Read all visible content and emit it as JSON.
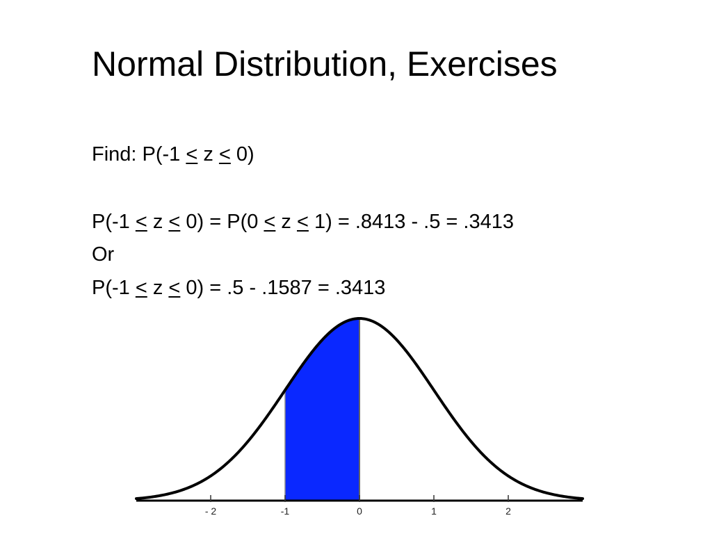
{
  "slide": {
    "title": "Normal Distribution, Exercises",
    "find_prefix": "Find: P(-1 ",
    "le_symbol": "<",
    "find_mid": " z ",
    "find_suffix": " 0)",
    "eq1_p1": "P(-1 ",
    "eq1_p2": " z ",
    "eq1_p3": " 0) = P(0 ",
    "eq1_p4": " z ",
    "eq1_p5": " 1) = .8413 - .5 = .3413",
    "or_text": "Or",
    "eq2_p1": "P(-1 ",
    "eq2_p2": " z ",
    "eq2_p3": " 0) = .5 - .1587 = .3413"
  },
  "chart_data": {
    "type": "area",
    "title": "",
    "xlabel": "",
    "ylabel": "",
    "xlim": [
      -3,
      3
    ],
    "ticks": [
      -2,
      -1,
      0,
      1,
      2
    ],
    "tick_labels": [
      "- 2",
      "-1",
      "0",
      "1",
      "2"
    ],
    "shaded_region": {
      "from": -1,
      "to": 0
    },
    "colors": {
      "fill": "#0a28ff",
      "curve": "#000000",
      "axis": "#000000"
    }
  }
}
